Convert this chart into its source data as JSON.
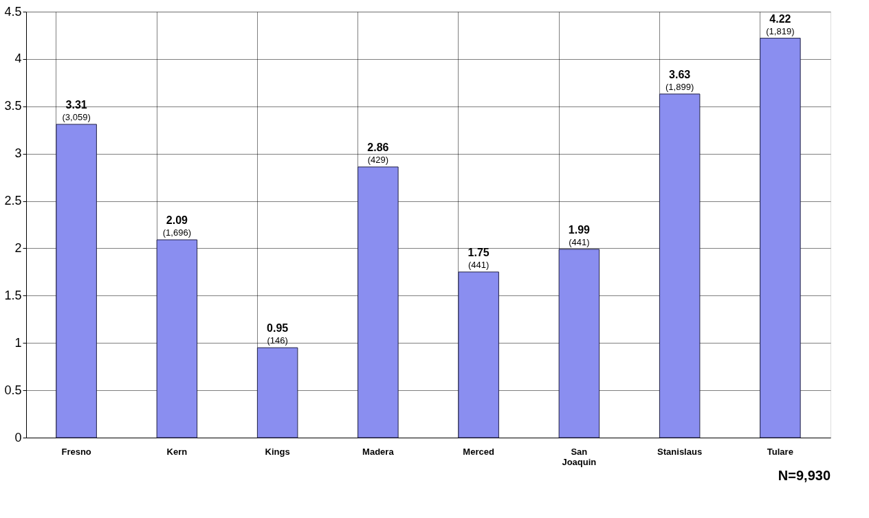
{
  "chart_data": {
    "type": "bar",
    "categories": [
      "Fresno",
      "Kern",
      "Kings",
      "Madera",
      "Merced",
      "San Joaquin",
      "Stanislaus",
      "Tulare"
    ],
    "values": [
      3.31,
      2.09,
      0.95,
      2.86,
      1.75,
      1.99,
      3.63,
      4.22
    ],
    "color": "#8a8ef0",
    "ylim": [
      0,
      4.5
    ],
    "yticks": [
      0,
      0.5,
      1,
      1.5,
      2,
      2.5,
      3,
      3.5,
      4,
      4.5
    ],
    "grid": true,
    "data_labels": true,
    "annotations": [
      {
        "text": "(3,059)",
        "x": "Fresno",
        "y": 3.31
      },
      {
        "text": "(1,696)",
        "x": "Kern",
        "y": 2.09
      },
      {
        "text": "(146)",
        "x": "Kings",
        "y": 0.95
      },
      {
        "text": "(429)",
        "x": "Madera",
        "y": 2.86
      },
      {
        "text": "(441)",
        "x": "Merced",
        "y": 1.75
      },
      {
        "text": "(441)",
        "x": "San Joaquin",
        "y": 1.99
      },
      {
        "text": "(1,899)",
        "x": "Stanislaus",
        "y": 3.63
      },
      {
        "text": "(1,819)",
        "x": "Tulare",
        "y": 4.22
      },
      "N=9,930"
    ]
  }
}
